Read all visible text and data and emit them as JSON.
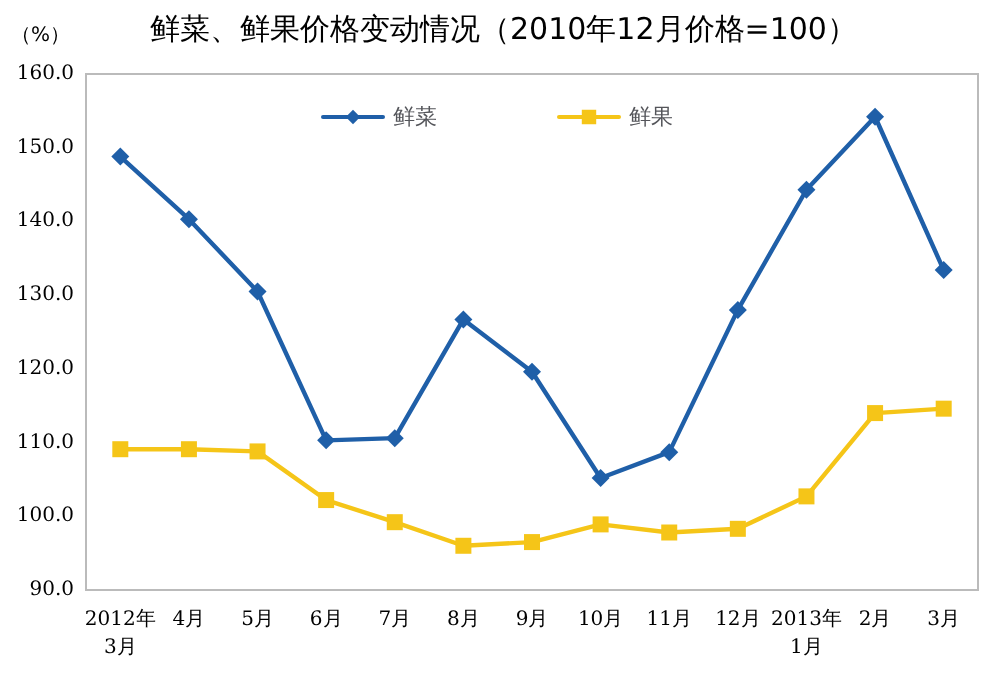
{
  "chart_data": {
    "type": "line",
    "title": "鲜菜、鲜果价格变动情况（2010年12月价格=100）",
    "ylabel": "（%）",
    "categories": [
      "2012年\n3月",
      "4月",
      "5月",
      "6月",
      "7月",
      "8月",
      "9月",
      "10月",
      "11月",
      "12月",
      "2013年\n1月",
      "2月",
      "3月"
    ],
    "series": [
      {
        "name": "鲜菜",
        "color": "#1f5fa8",
        "marker": "diamond",
        "values": [
          148.8,
          140.3,
          130.5,
          110.3,
          110.6,
          126.7,
          119.6,
          105.2,
          108.7,
          128.0,
          144.3,
          154.2,
          133.4
        ]
      },
      {
        "name": "鲜果",
        "color": "#f5c518",
        "marker": "square",
        "values": [
          109.1,
          109.1,
          108.8,
          102.2,
          99.2,
          96.0,
          96.5,
          98.9,
          97.8,
          98.3,
          102.7,
          114.0,
          114.6
        ]
      }
    ],
    "ylim": [
      90,
      160
    ],
    "yticks": [
      {
        "value": 90,
        "label": "90.0"
      },
      {
        "value": 100,
        "label": "100.0"
      },
      {
        "value": 110,
        "label": "110.0"
      },
      {
        "value": 120,
        "label": "120.0"
      },
      {
        "value": 130,
        "label": "130.0"
      },
      {
        "value": 140,
        "label": "140.0"
      },
      {
        "value": 150,
        "label": "150.0"
      },
      {
        "value": 160,
        "label": "160.0"
      }
    ],
    "grid": false,
    "legend": "top",
    "line_style": "solid"
  }
}
